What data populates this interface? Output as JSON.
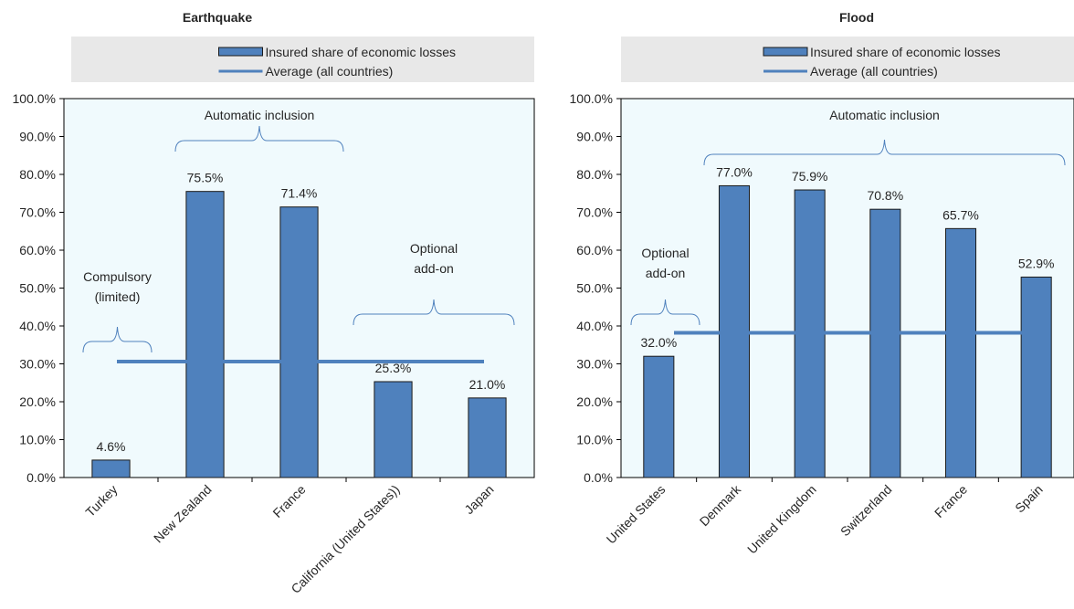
{
  "colors": {
    "bar_fill": "#4f81bd",
    "bar_stroke": "#1a1a1a",
    "average_line": "#4f81bd",
    "plot_background": "#f0fafd",
    "legend_background": "#e8e8e8",
    "bracket": "#4f81bd",
    "text": "#262626"
  },
  "chart_data": [
    {
      "type": "bar",
      "title": "Earthquake",
      "categories": [
        "Turkey",
        "New Zealand",
        "France",
        "California (United States))",
        "Japan"
      ],
      "series": [
        {
          "name": "Insured share of economic losses",
          "values": [
            4.6,
            75.5,
            71.4,
            25.3,
            21.0
          ]
        },
        {
          "name": "Average (all countries)",
          "type": "line",
          "value": 30.6
        }
      ],
      "data_labels": [
        "4.6%",
        "75.5%",
        "71.4%",
        "25.3%",
        "21.0%"
      ],
      "y_ticks": [
        "0.0%",
        "10.0%",
        "20.0%",
        "30.0%",
        "40.0%",
        "50.0%",
        "60.0%",
        "70.0%",
        "80.0%",
        "90.0%",
        "100.0%"
      ],
      "ylim": [
        0,
        100
      ],
      "legend_position": "top",
      "annotations": [
        {
          "lines": [
            "Compulsory",
            "(limited)"
          ],
          "from": 0,
          "to": 0
        },
        {
          "lines": [
            "Automatic inclusion"
          ],
          "from": 1,
          "to": 2
        },
        {
          "lines": [
            "Optional",
            "add-on"
          ],
          "from": 3,
          "to": 4
        }
      ]
    },
    {
      "type": "bar",
      "title": "Flood",
      "categories": [
        "United States",
        "Denmark",
        "United Kingdom",
        "Switzerland",
        "France",
        "Spain"
      ],
      "series": [
        {
          "name": "Insured share of economic losses",
          "values": [
            32.0,
            77.0,
            75.9,
            70.8,
            65.7,
            52.9
          ]
        },
        {
          "name": "Average (all countries)",
          "type": "line",
          "value": 38.2
        }
      ],
      "data_labels": [
        "32.0%",
        "77.0%",
        "75.9%",
        "70.8%",
        "65.7%",
        "52.9%"
      ],
      "y_ticks": [
        "0.0%",
        "10.0%",
        "20.0%",
        "30.0%",
        "40.0%",
        "50.0%",
        "60.0%",
        "70.0%",
        "80.0%",
        "90.0%",
        "100.0%"
      ],
      "ylim": [
        0,
        100
      ],
      "legend_position": "top",
      "annotations": [
        {
          "lines": [
            "Optional",
            "add-on"
          ],
          "from": 0,
          "to": 0
        },
        {
          "lines": [
            "Automatic inclusion"
          ],
          "from": 1,
          "to": 5
        }
      ]
    }
  ]
}
